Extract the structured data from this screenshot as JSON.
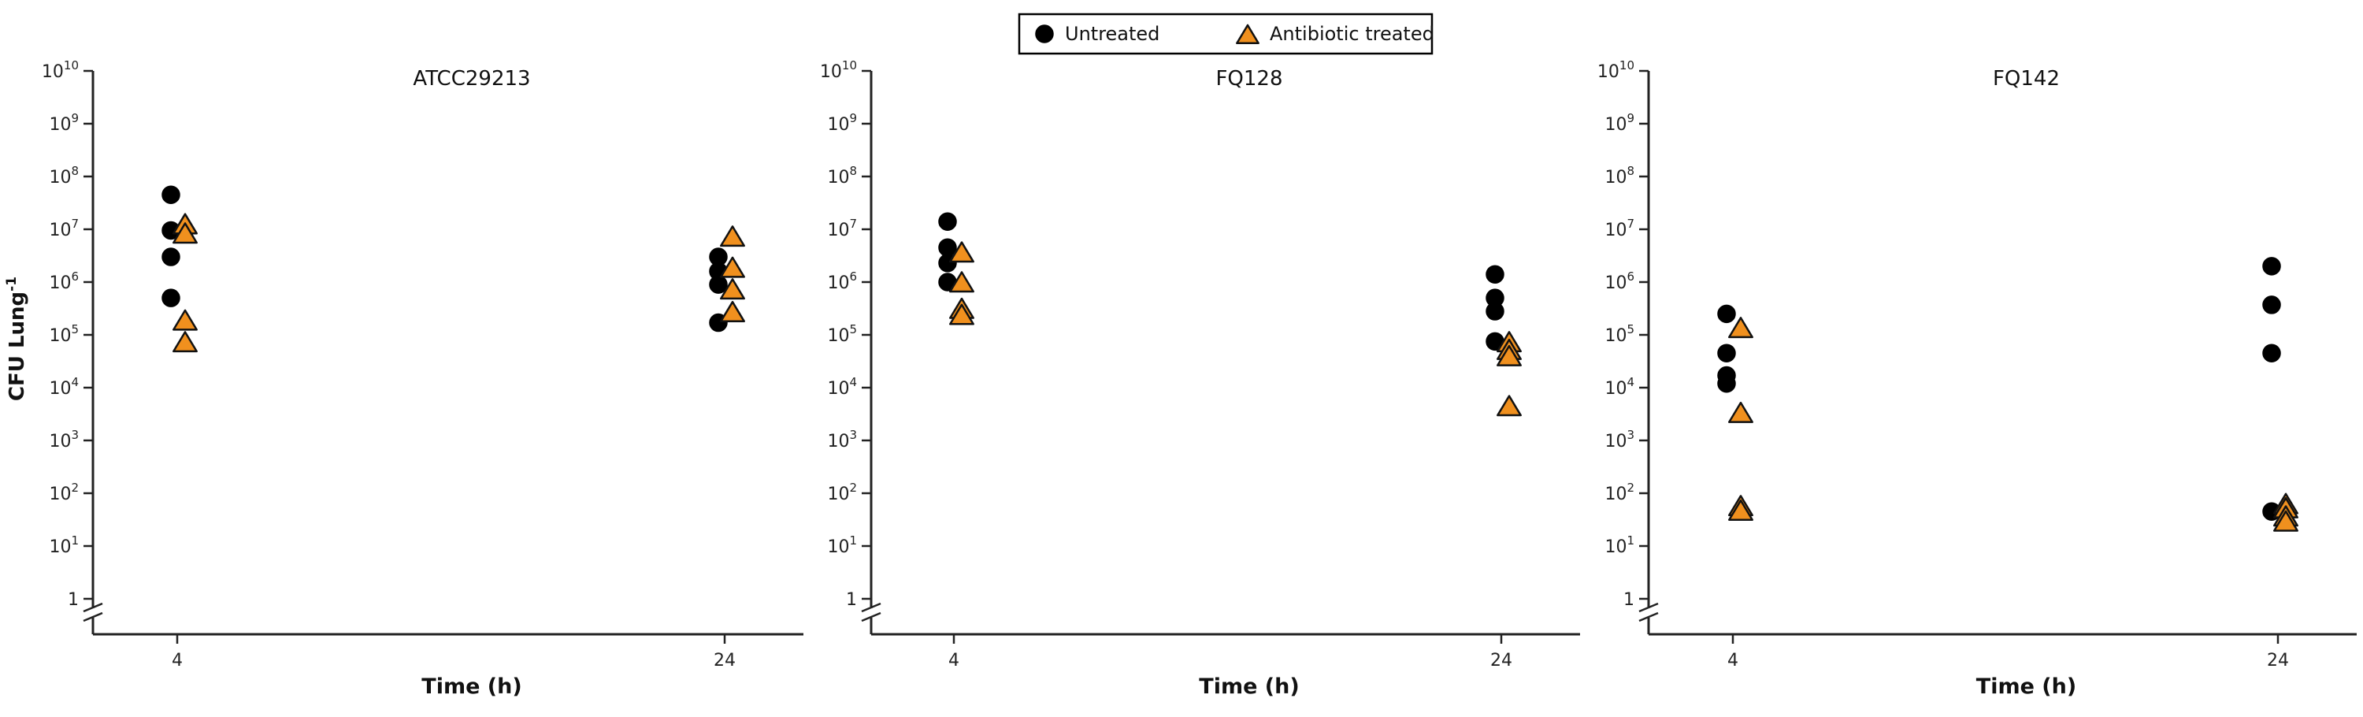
{
  "legend": {
    "items": [
      {
        "label": "Untreated",
        "marker": "circle",
        "color": "#000000"
      },
      {
        "label": "Antibiotic treated",
        "marker": "triangle",
        "color": "#F0901E"
      }
    ]
  },
  "chart_data": [
    {
      "type": "scatter",
      "title": "ATCC29213",
      "xlabel": "Time (h)",
      "ylabel": "CFU Lung-1",
      "yscale": "log",
      "ylim": [
        1,
        10000000000
      ],
      "x_categories": [
        "4",
        "24"
      ],
      "yticks": [
        "1",
        "10^1",
        "10^2",
        "10^3",
        "10^4",
        "10^5",
        "10^6",
        "10^7",
        "10^8",
        "10^9",
        "10^10"
      ],
      "series": [
        {
          "name": "Untreated",
          "points": [
            {
              "x": "4",
              "y": 45000000
            },
            {
              "x": "4",
              "y": 9500000
            },
            {
              "x": "4",
              "y": 3000000
            },
            {
              "x": "4",
              "y": 500000
            },
            {
              "x": "24",
              "y": 3000000
            },
            {
              "x": "24",
              "y": 1600000
            },
            {
              "x": "24",
              "y": 900000
            },
            {
              "x": "24",
              "y": 170000
            }
          ]
        },
        {
          "name": "Antibiotic treated",
          "points": [
            {
              "x": "4",
              "y": 12000000
            },
            {
              "x": "4",
              "y": 8000000
            },
            {
              "x": "4",
              "y": 180000
            },
            {
              "x": "4",
              "y": 70000
            },
            {
              "x": "24",
              "y": 7000000
            },
            {
              "x": "24",
              "y": 1800000
            },
            {
              "x": "24",
              "y": 700000
            },
            {
              "x": "24",
              "y": 260000
            }
          ]
        }
      ]
    },
    {
      "type": "scatter",
      "title": "FQ128",
      "xlabel": "Time (h)",
      "ylabel": "",
      "yscale": "log",
      "ylim": [
        1,
        10000000000
      ],
      "x_categories": [
        "4",
        "24"
      ],
      "yticks": [
        "1",
        "10^1",
        "10^2",
        "10^3",
        "10^4",
        "10^5",
        "10^6",
        "10^7",
        "10^8",
        "10^9",
        "10^10"
      ],
      "series": [
        {
          "name": "Untreated",
          "points": [
            {
              "x": "4",
              "y": 14000000
            },
            {
              "x": "4",
              "y": 4500000
            },
            {
              "x": "4",
              "y": 2300000
            },
            {
              "x": "4",
              "y": 1000000
            },
            {
              "x": "24",
              "y": 1400000
            },
            {
              "x": "24",
              "y": 500000
            },
            {
              "x": "24",
              "y": 280000
            },
            {
              "x": "24",
              "y": 75000
            }
          ]
        },
        {
          "name": "Antibiotic treated",
          "points": [
            {
              "x": "4",
              "y": 3500000
            },
            {
              "x": "4",
              "y": 950000
            },
            {
              "x": "4",
              "y": 300000
            },
            {
              "x": "4",
              "y": 230000
            },
            {
              "x": "24",
              "y": 70000
            },
            {
              "x": "24",
              "y": 50000
            },
            {
              "x": "24",
              "y": 38000
            },
            {
              "x": "24",
              "y": 4300
            }
          ]
        }
      ]
    },
    {
      "type": "scatter",
      "title": "FQ142",
      "xlabel": "Time (h)",
      "ylabel": "",
      "yscale": "log",
      "ylim": [
        1,
        10000000000
      ],
      "x_categories": [
        "4",
        "24"
      ],
      "yticks": [
        "1",
        "10^1",
        "10^2",
        "10^3",
        "10^4",
        "10^5",
        "10^6",
        "10^7",
        "10^8",
        "10^9",
        "10^10"
      ],
      "series": [
        {
          "name": "Untreated",
          "points": [
            {
              "x": "4",
              "y": 250000
            },
            {
              "x": "4",
              "y": 45000
            },
            {
              "x": "4",
              "y": 17000
            },
            {
              "x": "4",
              "y": 12000
            },
            {
              "x": "24",
              "y": 2000000
            },
            {
              "x": "24",
              "y": 370000
            },
            {
              "x": "24",
              "y": 45000
            },
            {
              "x": "24",
              "y": 45
            }
          ]
        },
        {
          "name": "Antibiotic treated",
          "points": [
            {
              "x": "4",
              "y": 130000
            },
            {
              "x": "4",
              "y": 3200
            },
            {
              "x": "4",
              "y": 55
            },
            {
              "x": "4",
              "y": 45
            },
            {
              "x": "24",
              "y": 60
            },
            {
              "x": "24",
              "y": 50
            },
            {
              "x": "24",
              "y": 35
            },
            {
              "x": "24",
              "y": 28
            }
          ]
        }
      ]
    }
  ]
}
